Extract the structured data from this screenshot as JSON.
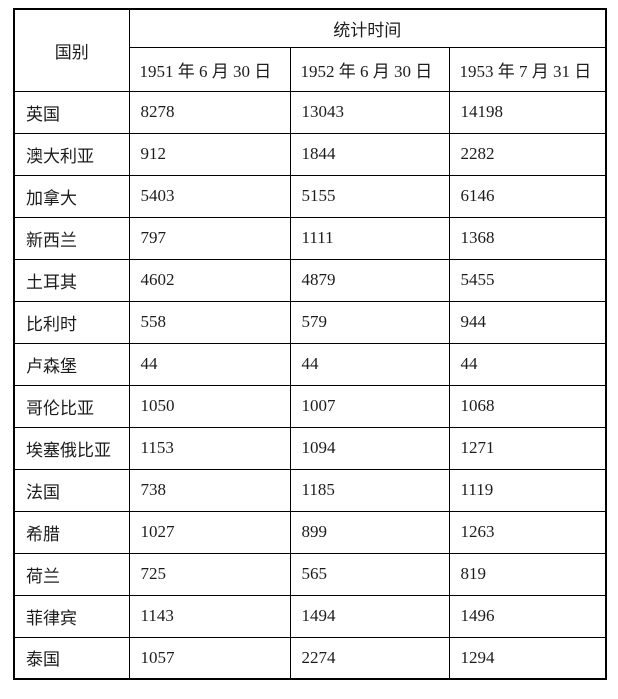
{
  "table": {
    "corner_header": "国别",
    "group_header": "统计时间",
    "date_headers": [
      "1951 年 6 月 30 日",
      "1952 年 6 月 30 日",
      "1953 年 7 月 31 日"
    ],
    "rows": [
      {
        "country": "英国",
        "values": [
          "8278",
          "13043",
          "14198"
        ]
      },
      {
        "country": "澳大利亚",
        "values": [
          "912",
          "1844",
          "2282"
        ]
      },
      {
        "country": "加拿大",
        "values": [
          "5403",
          "5155",
          "6146"
        ]
      },
      {
        "country": "新西兰",
        "values": [
          "797",
          "1111",
          "1368"
        ]
      },
      {
        "country": "土耳其",
        "values": [
          "4602",
          "4879",
          "5455"
        ]
      },
      {
        "country": "比利时",
        "values": [
          "558",
          "579",
          "944"
        ]
      },
      {
        "country": "卢森堡",
        "values": [
          "44",
          "44",
          "44"
        ]
      },
      {
        "country": "哥伦比亚",
        "values": [
          "1050",
          "1007",
          "1068"
        ]
      },
      {
        "country": "埃塞俄比亚",
        "values": [
          "1153",
          "1094",
          "1271"
        ]
      },
      {
        "country": "法国",
        "values": [
          "738",
          "1185",
          "1119"
        ]
      },
      {
        "country": "希腊",
        "values": [
          "1027",
          "899",
          "1263"
        ]
      },
      {
        "country": "荷兰",
        "values": [
          "725",
          "565",
          "819"
        ]
      },
      {
        "country": "菲律宾",
        "values": [
          "1143",
          "1494",
          "1496"
        ]
      },
      {
        "country": "泰国",
        "values": [
          "1057",
          "2274",
          "1294"
        ]
      }
    ],
    "colors": {
      "border": "#000000",
      "text": "#1c1c1c",
      "background": "#ffffff"
    }
  }
}
